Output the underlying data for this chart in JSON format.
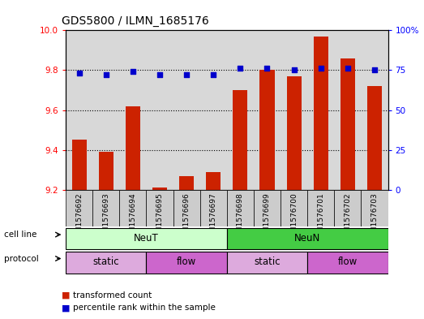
{
  "title": "GDS5800 / ILMN_1685176",
  "samples": [
    "GSM1576692",
    "GSM1576693",
    "GSM1576694",
    "GSM1576695",
    "GSM1576696",
    "GSM1576697",
    "GSM1576698",
    "GSM1576699",
    "GSM1576700",
    "GSM1576701",
    "GSM1576702",
    "GSM1576703"
  ],
  "transformed_count": [
    9.45,
    9.39,
    9.62,
    9.21,
    9.27,
    9.29,
    9.7,
    9.8,
    9.77,
    9.97,
    9.86,
    9.72
  ],
  "percentile_rank": [
    73,
    72,
    74,
    72,
    72,
    72,
    76,
    76,
    75,
    76,
    76,
    75
  ],
  "ylim_left": [
    9.2,
    10.0
  ],
  "ylim_right": [
    0,
    100
  ],
  "yticks_left": [
    9.2,
    9.4,
    9.6,
    9.8,
    10.0
  ],
  "yticks_right": [
    0,
    25,
    50,
    75,
    100
  ],
  "bar_color": "#cc2200",
  "dot_color": "#0000cc",
  "cell_line_colors": {
    "NeuT": "#ccffcc",
    "NeuN": "#44cc44"
  },
  "protocol_colors": {
    "static": "#ddaadd",
    "flow": "#cc66cc"
  },
  "sample_bg_color": "#cccccc",
  "cell_line_groups": [
    {
      "label": "NeuT",
      "start": 0,
      "end": 5
    },
    {
      "label": "NeuN",
      "start": 6,
      "end": 11
    }
  ],
  "protocol_groups": [
    {
      "label": "static",
      "start": 0,
      "end": 2
    },
    {
      "label": "flow",
      "start": 3,
      "end": 5
    },
    {
      "label": "static",
      "start": 6,
      "end": 8
    },
    {
      "label": "flow",
      "start": 9,
      "end": 11
    }
  ],
  "legend_items": [
    {
      "label": "transformed count",
      "color": "#cc2200"
    },
    {
      "label": "percentile rank within the sample",
      "color": "#0000cc"
    }
  ],
  "background_color": "#ffffff",
  "cell_line_label": "cell line",
  "protocol_label": "protocol",
  "plot_bg_color": "#d8d8d8"
}
